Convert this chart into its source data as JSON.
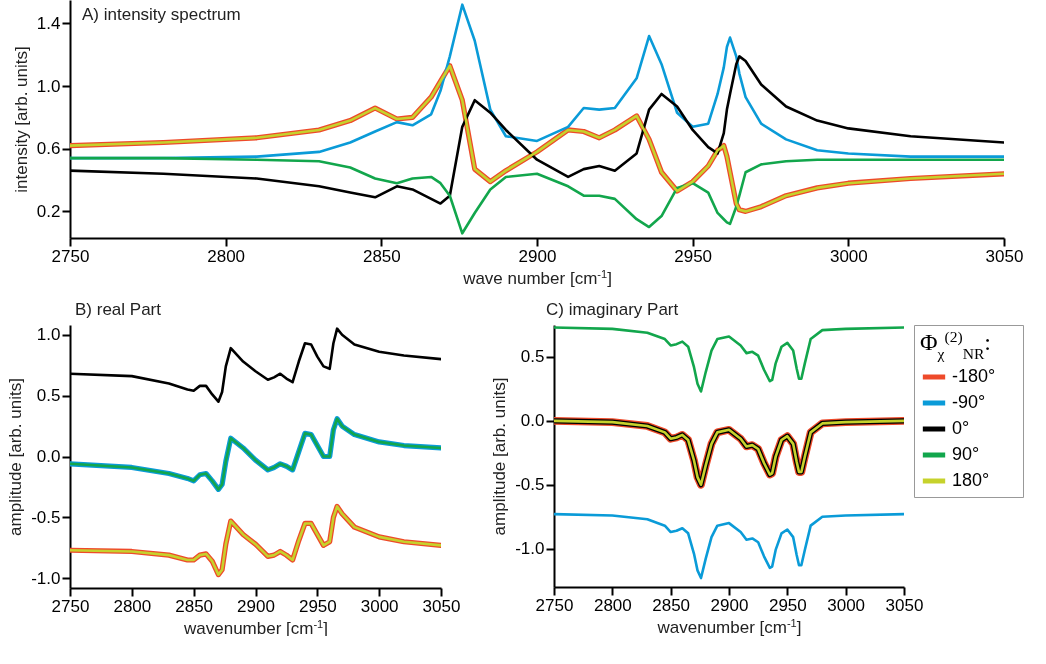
{
  "chart_data": [
    {
      "type": "line",
      "title": "A) intensity spectrum",
      "xlabel": "wave number [cm$^{-1}$]",
      "ylabel": "intensity [arb. units]",
      "xlim": [
        2750,
        3050
      ],
      "xticks": [
        2750,
        2800,
        2850,
        2900,
        2950,
        3000,
        3050
      ],
      "ylim": [
        0.03,
        1.55
      ],
      "yticks": [
        0.2,
        0.6,
        {
          "value": 1,
          "label": "1.0"
        },
        1.4
      ],
      "x": [
        2750,
        2780,
        2810,
        2830,
        2840,
        2848,
        2855,
        2860,
        2866,
        2869,
        2872,
        2876,
        2880,
        2885,
        2890,
        2900,
        2910,
        2915,
        2920,
        2925,
        2932,
        2936,
        2940,
        2945,
        2950,
        2955,
        2958,
        2960,
        2961,
        2962,
        2964,
        2965,
        2967,
        2972,
        2980,
        2990,
        3000,
        3020,
        3050
      ],
      "series": [
        {
          "color": "#ee4a2a",
          "values": [
            0.62,
            0.64,
            0.67,
            0.72,
            0.78,
            0.86,
            0.79,
            0.8,
            0.93,
            1.03,
            1.13,
            0.91,
            0.47,
            0.39,
            0.46,
            0.58,
            0.72,
            0.71,
            0.67,
            0.72,
            0.81,
            0.66,
            0.45,
            0.33,
            0.39,
            0.49,
            0.59,
            0.62,
            0.55,
            0.45,
            0.25,
            0.21,
            0.2,
            0.23,
            0.3,
            0.35,
            0.38,
            0.41,
            0.44
          ]
        },
        {
          "color": "#0a9bd8",
          "values": [
            0.54,
            0.54,
            0.55,
            0.58,
            0.64,
            0.71,
            0.77,
            0.75,
            0.82,
            0.97,
            1.19,
            1.52,
            1.29,
            0.85,
            0.68,
            0.65,
            0.74,
            0.86,
            0.85,
            0.86,
            1.05,
            1.32,
            1.14,
            0.83,
            0.74,
            0.76,
            0.95,
            1.12,
            1.25,
            1.31,
            1.19,
            1.08,
            0.93,
            0.76,
            0.66,
            0.59,
            0.57,
            0.55,
            0.55
          ]
        },
        {
          "color": "#000000",
          "values": [
            0.46,
            0.44,
            0.41,
            0.36,
            0.32,
            0.29,
            0.36,
            0.34,
            0.28,
            0.25,
            0.3,
            0.74,
            0.91,
            0.83,
            0.72,
            0.53,
            0.42,
            0.47,
            0.49,
            0.46,
            0.57,
            0.85,
            0.95,
            0.87,
            0.72,
            0.61,
            0.57,
            0.7,
            0.85,
            0.95,
            1.14,
            1.19,
            1.16,
            1.01,
            0.87,
            0.78,
            0.73,
            0.68,
            0.64
          ]
        },
        {
          "color": "#12a64c",
          "values": [
            0.54,
            0.54,
            0.53,
            0.52,
            0.48,
            0.41,
            0.38,
            0.41,
            0.42,
            0.38,
            0.3,
            0.06,
            0.19,
            0.34,
            0.42,
            0.44,
            0.36,
            0.3,
            0.3,
            0.28,
            0.15,
            0.1,
            0.17,
            0.35,
            0.38,
            0.32,
            0.19,
            0.15,
            0.13,
            0.12,
            0.23,
            0.3,
            0.45,
            0.5,
            0.52,
            0.53,
            0.53,
            0.53,
            0.53
          ]
        },
        {
          "color": "#c6d22c",
          "values": [
            0.62,
            0.64,
            0.67,
            0.72,
            0.78,
            0.86,
            0.79,
            0.8,
            0.93,
            1.03,
            1.13,
            0.91,
            0.47,
            0.39,
            0.46,
            0.58,
            0.72,
            0.71,
            0.67,
            0.72,
            0.81,
            0.66,
            0.45,
            0.33,
            0.39,
            0.49,
            0.59,
            0.62,
            0.55,
            0.45,
            0.25,
            0.21,
            0.2,
            0.23,
            0.3,
            0.35,
            0.38,
            0.41,
            0.44
          ]
        }
      ]
    },
    {
      "type": "line",
      "title": "B) real Part",
      "xlabel": "wavenumber [cm$^{-1}$]",
      "ylabel": "amplitude [arb. units]",
      "xlim": [
        2750,
        3050
      ],
      "xticks": [
        2750,
        2800,
        2850,
        2900,
        2950,
        3000,
        3050
      ],
      "ylim": [
        -1.08,
        1.08
      ],
      "yticks": [
        {
          "value": -1,
          "label": "-1.0"
        },
        -0.5,
        {
          "value": 0,
          "label": "0.0"
        },
        0.5,
        {
          "value": 1,
          "label": "1.0"
        }
      ],
      "x": [
        2750,
        2800,
        2830,
        2845,
        2850,
        2855,
        2860,
        2865,
        2870,
        2873,
        2876,
        2880,
        2890,
        2900,
        2910,
        2915,
        2920,
        2925,
        2930,
        2935,
        2940,
        2945,
        2950,
        2955,
        2960,
        2963,
        2966,
        2970,
        2980,
        3000,
        3020,
        3050
      ],
      "series": [
        {
          "color": "#ee4a2a",
          "values": [
            -0.77,
            -0.78,
            -0.81,
            -0.85,
            -0.85,
            -0.81,
            -0.8,
            -0.86,
            -0.97,
            -0.93,
            -0.72,
            -0.53,
            -0.64,
            -0.72,
            -0.82,
            -0.81,
            -0.78,
            -0.81,
            -0.85,
            -0.69,
            -0.55,
            -0.55,
            -0.64,
            -0.73,
            -0.7,
            -0.5,
            -0.41,
            -0.47,
            -0.58,
            -0.66,
            -0.7,
            -0.73
          ]
        },
        {
          "color": "#0a9bd8",
          "values": [
            -0.06,
            -0.09,
            -0.14,
            -0.18,
            -0.2,
            -0.15,
            -0.14,
            -0.2,
            -0.27,
            -0.23,
            -0.04,
            0.15,
            0.07,
            -0.03,
            -0.11,
            -0.09,
            -0.06,
            -0.08,
            -0.11,
            0.04,
            0.19,
            0.18,
            0.09,
            0.0,
            0.0,
            0.22,
            0.31,
            0.25,
            0.18,
            0.12,
            0.09,
            0.07
          ]
        },
        {
          "color": "#000000",
          "values": [
            0.68,
            0.66,
            0.6,
            0.55,
            0.54,
            0.58,
            0.58,
            0.51,
            0.45,
            0.53,
            0.74,
            0.89,
            0.78,
            0.7,
            0.63,
            0.65,
            0.68,
            0.64,
            0.61,
            0.78,
            0.93,
            0.92,
            0.82,
            0.74,
            0.72,
            0.93,
            1.05,
            1.0,
            0.92,
            0.86,
            0.83,
            0.8
          ]
        },
        {
          "color": "#12a64c",
          "values": [
            -0.06,
            -0.09,
            -0.14,
            -0.18,
            -0.2,
            -0.15,
            -0.14,
            -0.2,
            -0.27,
            -0.23,
            -0.04,
            0.15,
            0.07,
            -0.03,
            -0.11,
            -0.09,
            -0.06,
            -0.08,
            -0.11,
            0.04,
            0.19,
            0.18,
            0.09,
            0.0,
            0.0,
            0.22,
            0.31,
            0.25,
            0.18,
            0.12,
            0.09,
            0.07
          ]
        },
        {
          "color": "#c6d22c",
          "values": [
            -0.77,
            -0.78,
            -0.81,
            -0.85,
            -0.85,
            -0.81,
            -0.8,
            -0.86,
            -0.97,
            -0.93,
            -0.72,
            -0.53,
            -0.64,
            -0.72,
            -0.82,
            -0.81,
            -0.78,
            -0.81,
            -0.85,
            -0.69,
            -0.55,
            -0.55,
            -0.64,
            -0.73,
            -0.7,
            -0.5,
            -0.41,
            -0.47,
            -0.58,
            -0.66,
            -0.7,
            -0.73
          ]
        }
      ]
    },
    {
      "type": "line",
      "title": "C) imaginary Part",
      "xlabel": "wavenumber [cm$^{-1}$]",
      "ylabel": "amplitude [arb. units]",
      "legend": "right",
      "legend_title": "Φ$_{χ}$$^{(2)}$$_{NR}$:",
      "xlim": [
        2750,
        3050
      ],
      "xticks": [
        2750,
        2800,
        2850,
        2900,
        2950,
        3000,
        3050
      ],
      "ylim": [
        -1.3,
        0.75
      ],
      "yticks": [
        {
          "value": -1,
          "label": "-1.0"
        },
        -0.5,
        {
          "value": 0,
          "label": "0.0"
        },
        0.5
      ],
      "x": [
        2750,
        2800,
        2830,
        2845,
        2850,
        2855,
        2860,
        2865,
        2870,
        2873,
        2876,
        2880,
        2885,
        2890,
        2900,
        2910,
        2915,
        2920,
        2925,
        2930,
        2935,
        2937,
        2940,
        2945,
        2950,
        2955,
        2958,
        2960,
        2962,
        2965,
        2970,
        2980,
        3000,
        3050
      ],
      "series": [
        {
          "name": "-180°",
          "color": "#ee4a2a",
          "values": [
            0.0,
            -0.01,
            -0.04,
            -0.09,
            -0.14,
            -0.13,
            -0.11,
            -0.15,
            -0.31,
            -0.44,
            -0.5,
            -0.35,
            -0.18,
            -0.09,
            -0.07,
            -0.14,
            -0.2,
            -0.19,
            -0.22,
            -0.33,
            -0.42,
            -0.41,
            -0.28,
            -0.15,
            -0.12,
            -0.18,
            -0.32,
            -0.4,
            -0.4,
            -0.28,
            -0.09,
            -0.02,
            -0.01,
            0.0
          ]
        },
        {
          "name": "-90°",
          "color": "#0a9bd8",
          "values": [
            -0.73,
            -0.74,
            -0.77,
            -0.82,
            -0.87,
            -0.86,
            -0.84,
            -0.88,
            -1.04,
            -1.17,
            -1.23,
            -1.08,
            -0.91,
            -0.82,
            -0.8,
            -0.87,
            -0.93,
            -0.92,
            -0.95,
            -1.06,
            -1.15,
            -1.14,
            -1.01,
            -0.88,
            -0.85,
            -0.91,
            -1.05,
            -1.13,
            -1.13,
            -1.01,
            -0.82,
            -0.75,
            -0.74,
            -0.73
          ]
        },
        {
          "name": "0°",
          "color": "#000000",
          "values": [
            0.0,
            -0.01,
            -0.04,
            -0.09,
            -0.14,
            -0.13,
            -0.11,
            -0.15,
            -0.31,
            -0.44,
            -0.5,
            -0.35,
            -0.18,
            -0.09,
            -0.07,
            -0.14,
            -0.2,
            -0.19,
            -0.22,
            -0.33,
            -0.42,
            -0.41,
            -0.28,
            -0.15,
            -0.12,
            -0.18,
            -0.32,
            -0.4,
            -0.4,
            -0.28,
            -0.09,
            -0.02,
            -0.01,
            0.0
          ]
        },
        {
          "name": "90°",
          "color": "#12a64c",
          "values": [
            0.73,
            0.72,
            0.69,
            0.64,
            0.59,
            0.6,
            0.62,
            0.58,
            0.42,
            0.29,
            0.23,
            0.38,
            0.55,
            0.64,
            0.66,
            0.59,
            0.53,
            0.54,
            0.51,
            0.4,
            0.31,
            0.32,
            0.45,
            0.58,
            0.61,
            0.55,
            0.41,
            0.33,
            0.33,
            0.45,
            0.64,
            0.71,
            0.72,
            0.73
          ]
        },
        {
          "name": "180°",
          "color": "#c6d22c",
          "values": [
            0.0,
            -0.01,
            -0.04,
            -0.09,
            -0.14,
            -0.13,
            -0.11,
            -0.15,
            -0.31,
            -0.44,
            -0.5,
            -0.35,
            -0.18,
            -0.09,
            -0.07,
            -0.14,
            -0.2,
            -0.19,
            -0.22,
            -0.33,
            -0.42,
            -0.41,
            -0.28,
            -0.15,
            -0.12,
            -0.18,
            -0.32,
            -0.4,
            -0.4,
            -0.28,
            -0.09,
            -0.02,
            -0.01,
            0.0
          ]
        }
      ]
    }
  ]
}
